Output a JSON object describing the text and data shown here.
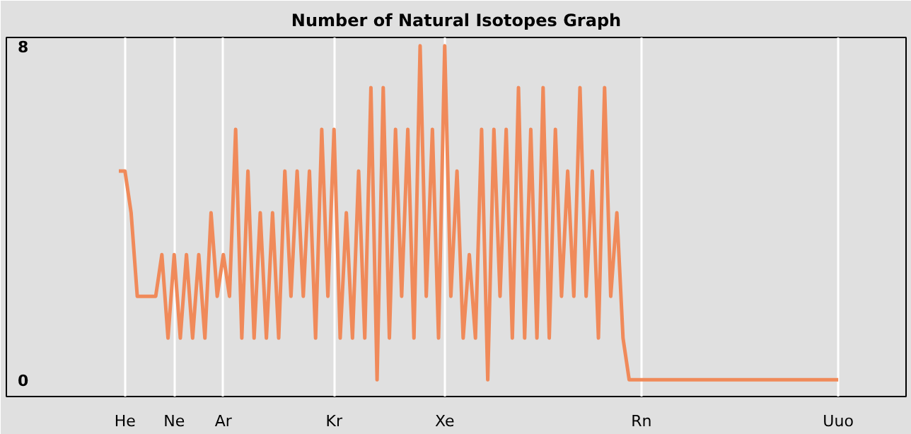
{
  "chart_data": {
    "type": "line",
    "title": "Number of Natural Isotopes Graph",
    "categories": [
      null,
      "He",
      null,
      null,
      null,
      null,
      null,
      null,
      null,
      "Ne",
      null,
      null,
      null,
      null,
      null,
      null,
      null,
      "Ar",
      null,
      null,
      null,
      null,
      null,
      null,
      null,
      null,
      null,
      null,
      null,
      null,
      null,
      null,
      null,
      null,
      null,
      "Kr",
      null,
      null,
      null,
      null,
      null,
      null,
      null,
      null,
      null,
      null,
      null,
      null,
      null,
      null,
      null,
      null,
      null,
      "Xe",
      null,
      null,
      null,
      null,
      null,
      null,
      null,
      null,
      null,
      null,
      null,
      null,
      null,
      null,
      null,
      null,
      null,
      null,
      null,
      null,
      null,
      null,
      null,
      null,
      null,
      null,
      null,
      null,
      null,
      null,
      null,
      "Rn",
      null,
      null,
      null,
      null,
      null,
      null,
      null,
      null,
      null,
      null,
      null,
      null,
      null,
      null,
      null,
      null,
      null,
      null,
      null,
      null,
      null,
      null,
      null,
      null,
      null,
      null,
      null,
      null,
      null,
      null,
      null,
      "Uuo"
    ],
    "series": [
      {
        "color": "#f08a5a",
        "values": [
          5,
          5,
          4,
          2,
          2,
          2,
          2,
          3,
          1,
          3,
          1,
          3,
          1,
          3,
          1,
          4,
          2,
          3,
          2,
          6,
          1,
          5,
          1,
          4,
          1,
          4,
          1,
          5,
          2,
          5,
          2,
          5,
          1,
          6,
          2,
          6,
          1,
          4,
          1,
          5,
          1,
          7,
          0,
          7,
          1,
          6,
          2,
          6,
          1,
          8,
          2,
          6,
          1,
          8,
          2,
          5,
          1,
          3,
          1,
          6,
          0,
          6,
          2,
          6,
          1,
          7,
          1,
          6,
          1,
          7,
          1,
          6,
          2,
          5,
          2,
          7,
          2,
          5,
          1,
          7,
          2,
          4,
          1,
          0,
          0,
          0,
          0,
          0,
          0,
          0,
          0,
          0,
          0,
          0,
          0,
          0,
          0,
          0,
          0,
          0,
          0,
          0,
          0,
          0,
          0,
          0,
          0,
          0,
          0,
          0,
          0,
          0,
          0,
          0,
          0,
          0,
          0,
          0
        ]
      }
    ],
    "ylim": [
      -0.4,
      8.2
    ],
    "yticks": [
      0,
      8
    ],
    "grid": "x",
    "line_style": "solid",
    "marker": "none"
  }
}
